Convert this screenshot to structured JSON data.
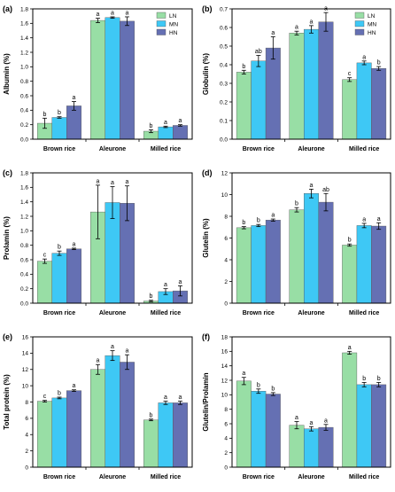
{
  "colors": {
    "LN": "#98dea5",
    "MN": "#3ec8f5",
    "HN": "#6570b3",
    "axis": "#000000"
  },
  "chart_data": [
    {
      "type": "bar",
      "panel_label": "(a)",
      "ylabel": "Albumin (%)",
      "categories": [
        "Brown rice",
        "Aleurone",
        "Milled rice"
      ],
      "ylim": [
        0,
        1.8
      ],
      "yticks": [
        "0.0",
        "0.2",
        "0.4",
        "0.6",
        "0.8",
        "1.0",
        "1.2",
        "1.4",
        "1.6",
        "1.8"
      ],
      "ytick_values": [
        0,
        0.2,
        0.4,
        0.6,
        0.8,
        1.0,
        1.2,
        1.4,
        1.6,
        1.8
      ],
      "legend": "top-right",
      "series": [
        {
          "name": "LN",
          "values": [
            0.22,
            1.64,
            0.11
          ],
          "errors": [
            0.07,
            0.03,
            0.02
          ],
          "letters": [
            "b",
            "a",
            "b"
          ]
        },
        {
          "name": "MN",
          "values": [
            0.3,
            1.68,
            0.17
          ],
          "errors": [
            0.01,
            0.01,
            0.01
          ],
          "letters": [
            "b",
            "a",
            "a"
          ]
        },
        {
          "name": "HN",
          "values": [
            0.46,
            1.63,
            0.19
          ],
          "errors": [
            0.06,
            0.06,
            0.01
          ],
          "letters": [
            "a",
            "a",
            "a"
          ]
        }
      ]
    },
    {
      "type": "bar",
      "panel_label": "(b)",
      "ylabel": "Globulin (%)",
      "categories": [
        "Brown rice",
        "Aleurone",
        "Milled rice"
      ],
      "ylim": [
        0,
        0.7
      ],
      "yticks": [
        "0.0",
        "0.1",
        "0.2",
        "0.3",
        "0.4",
        "0.5",
        "0.6",
        "0.7"
      ],
      "ytick_values": [
        0,
        0.1,
        0.2,
        0.3,
        0.4,
        0.5,
        0.6,
        0.7
      ],
      "legend": "top-right",
      "series": [
        {
          "name": "LN",
          "values": [
            0.36,
            0.57,
            0.32
          ],
          "errors": [
            0.01,
            0.01,
            0.01
          ],
          "letters": [
            "b",
            "a",
            "c"
          ]
        },
        {
          "name": "MN",
          "values": [
            0.42,
            0.59,
            0.41
          ],
          "errors": [
            0.03,
            0.02,
            0.01
          ],
          "letters": [
            "ab",
            "a",
            "a"
          ]
        },
        {
          "name": "HN",
          "values": [
            0.49,
            0.63,
            0.38
          ],
          "errors": [
            0.06,
            0.05,
            0.01
          ],
          "letters": [
            "a",
            "a",
            "b"
          ]
        }
      ]
    },
    {
      "type": "bar",
      "panel_label": "(c)",
      "ylabel": "Prolamin (%)",
      "categories": [
        "Brown rice",
        "Aleurone",
        "Milled rice"
      ],
      "ylim": [
        0,
        1.8
      ],
      "yticks": [
        "0.0",
        "0.2",
        "0.4",
        "0.6",
        "0.8",
        "1.0",
        "1.2",
        "1.4",
        "1.6",
        "1.8"
      ],
      "ytick_values": [
        0,
        0.2,
        0.4,
        0.6,
        0.8,
        1.0,
        1.2,
        1.4,
        1.6,
        1.8
      ],
      "series": [
        {
          "name": "LN",
          "values": [
            0.58,
            1.26,
            0.03
          ],
          "errors": [
            0.03,
            0.37,
            0.01
          ],
          "letters": [
            "c",
            "a",
            "b"
          ]
        },
        {
          "name": "MN",
          "values": [
            0.69,
            1.39,
            0.16
          ],
          "errors": [
            0.03,
            0.22,
            0.04
          ],
          "letters": [
            "b",
            "a",
            "a"
          ]
        },
        {
          "name": "HN",
          "values": [
            0.75,
            1.38,
            0.17
          ],
          "errors": [
            0.01,
            0.24,
            0.07
          ],
          "letters": [
            "a",
            "a",
            "a"
          ]
        }
      ]
    },
    {
      "type": "bar",
      "panel_label": "(d)",
      "ylabel": "Glutelin (%)",
      "categories": [
        "Brown rice",
        "Aleurone",
        "Milled rice"
      ],
      "ylim": [
        0,
        12
      ],
      "yticks": [
        "0",
        "2",
        "4",
        "6",
        "8",
        "10",
        "12"
      ],
      "ytick_values": [
        0,
        2,
        4,
        6,
        8,
        10,
        12
      ],
      "series": [
        {
          "name": "LN",
          "values": [
            6.95,
            8.6,
            5.35
          ],
          "errors": [
            0.1,
            0.2,
            0.1
          ],
          "letters": [
            "b",
            "b",
            "b"
          ]
        },
        {
          "name": "MN",
          "values": [
            7.15,
            10.1,
            7.15
          ],
          "errors": [
            0.1,
            0.4,
            0.2
          ],
          "letters": [
            "b",
            "a",
            "a"
          ]
        },
        {
          "name": "HN",
          "values": [
            7.65,
            9.3,
            7.1
          ],
          "errors": [
            0.1,
            0.8,
            0.3
          ],
          "letters": [
            "a",
            "ab",
            "a"
          ]
        }
      ]
    },
    {
      "type": "bar",
      "panel_label": "(e)",
      "ylabel": "Total protein (%)",
      "categories": [
        "Brown rice",
        "Aleurone",
        "Milled rice"
      ],
      "ylim": [
        0,
        16
      ],
      "yticks": [
        "0",
        "2",
        "4",
        "6",
        "8",
        "10",
        "12",
        "14",
        "16"
      ],
      "ytick_values": [
        0,
        2,
        4,
        6,
        8,
        10,
        12,
        14,
        16
      ],
      "series": [
        {
          "name": "LN",
          "values": [
            8.1,
            12.0,
            5.8
          ],
          "errors": [
            0.1,
            0.6,
            0.1
          ],
          "letters": [
            "c",
            "a",
            "b"
          ]
        },
        {
          "name": "MN",
          "values": [
            8.5,
            13.7,
            7.9
          ],
          "errors": [
            0.1,
            0.6,
            0.2
          ],
          "letters": [
            "b",
            "a",
            "a"
          ]
        },
        {
          "name": "HN",
          "values": [
            9.4,
            12.9,
            7.9
          ],
          "errors": [
            0.1,
            0.9,
            0.2
          ],
          "letters": [
            "a",
            "a",
            "a"
          ]
        }
      ]
    },
    {
      "type": "bar",
      "panel_label": "(f)",
      "ylabel": "Glutelin/Prolamin",
      "categories": [
        "Brown rice",
        "Aleurone",
        "Milled rice"
      ],
      "ylim": [
        0,
        18
      ],
      "yticks": [
        "0",
        "2",
        "4",
        "6",
        "8",
        "10",
        "12",
        "14",
        "16",
        "18"
      ],
      "ytick_values": [
        0,
        2,
        4,
        6,
        8,
        10,
        12,
        14,
        16,
        18
      ],
      "series": [
        {
          "name": "LN",
          "values": [
            11.9,
            5.8,
            15.8
          ],
          "errors": [
            0.5,
            0.5,
            0.2
          ],
          "letters": [
            "a",
            "a",
            "a"
          ]
        },
        {
          "name": "MN",
          "values": [
            10.5,
            5.3,
            11.4
          ],
          "errors": [
            0.3,
            0.3,
            0.3
          ],
          "letters": [
            "b",
            "a",
            "b"
          ]
        },
        {
          "name": "HN",
          "values": [
            10.1,
            5.5,
            11.4
          ],
          "errors": [
            0.2,
            0.4,
            0.3
          ],
          "letters": [
            "b",
            "a",
            "b"
          ]
        }
      ]
    }
  ]
}
